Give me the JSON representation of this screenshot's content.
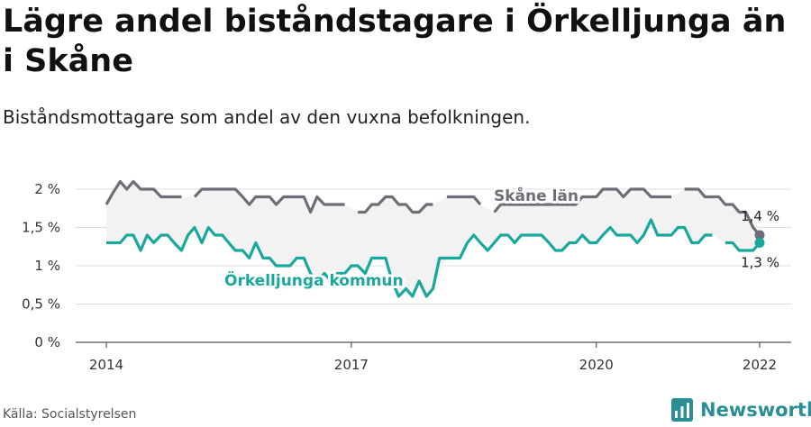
{
  "title": "Lägre andel biståndstagare i Örkelljunga än i Skåne",
  "subtitle": "Biståndsmottagare som andel av den vuxna befolkningen.",
  "source": "Källa: Socialstyrelsen",
  "brand": {
    "name": "Newsworthy",
    "icon": "bar-chart-logo-icon"
  },
  "colors": {
    "lan": "#6e6e78",
    "kommun": "#1aa89c",
    "band": "#f2f2f2",
    "grid": "#dddddd"
  },
  "chart_data": {
    "type": "line",
    "xlim": [
      2014,
      2022.25
    ],
    "ylim": [
      0,
      2.2
    ],
    "y_ticks": [
      {
        "value": 0,
        "label": "0 %"
      },
      {
        "value": 0.5,
        "label": "0,5 %"
      },
      {
        "value": 1,
        "label": "1 %"
      },
      {
        "value": 1.5,
        "label": "1,5 %"
      },
      {
        "value": 2,
        "label": "2 %"
      }
    ],
    "x_ticks": [
      {
        "value": 2014,
        "label": "2014"
      },
      {
        "value": 2017,
        "label": "2017"
      },
      {
        "value": 2020,
        "label": "2020"
      },
      {
        "value": 2022,
        "label": "2022"
      }
    ],
    "grid": true,
    "series": [
      {
        "name": "Skåne län",
        "color": "#6e6e78",
        "end_label": "1,4 %",
        "points": [
          [
            2014.0,
            1.8
          ],
          [
            2014.08,
            1.95
          ],
          [
            2014.17,
            2.1
          ],
          [
            2014.25,
            2.0
          ],
          [
            2014.33,
            2.1
          ],
          [
            2014.42,
            2.0
          ],
          [
            2014.5,
            2.0
          ],
          [
            2014.58,
            2.0
          ],
          [
            2014.67,
            1.9
          ],
          [
            2014.75,
            1.9
          ],
          [
            2014.83,
            1.9
          ],
          [
            2014.92,
            1.9
          ],
          [
            2015.0,
            null
          ],
          [
            2015.08,
            1.9
          ],
          [
            2015.17,
            2.0
          ],
          [
            2015.25,
            2.0
          ],
          [
            2015.33,
            2.0
          ],
          [
            2015.42,
            2.0
          ],
          [
            2015.5,
            2.0
          ],
          [
            2015.58,
            2.0
          ],
          [
            2015.67,
            1.9
          ],
          [
            2015.75,
            1.8
          ],
          [
            2015.83,
            1.9
          ],
          [
            2015.92,
            1.9
          ],
          [
            2016.0,
            1.9
          ],
          [
            2016.08,
            1.8
          ],
          [
            2016.17,
            1.9
          ],
          [
            2016.25,
            1.9
          ],
          [
            2016.33,
            1.9
          ],
          [
            2016.42,
            1.9
          ],
          [
            2016.5,
            1.7
          ],
          [
            2016.58,
            1.9
          ],
          [
            2016.67,
            1.8
          ],
          [
            2016.75,
            1.8
          ],
          [
            2016.83,
            1.8
          ],
          [
            2016.92,
            1.8
          ],
          [
            2017.0,
            null
          ],
          [
            2017.08,
            1.7
          ],
          [
            2017.17,
            1.7
          ],
          [
            2017.25,
            1.8
          ],
          [
            2017.33,
            1.8
          ],
          [
            2017.42,
            1.9
          ],
          [
            2017.5,
            1.9
          ],
          [
            2017.58,
            1.8
          ],
          [
            2017.67,
            1.8
          ],
          [
            2017.75,
            1.7
          ],
          [
            2017.83,
            1.7
          ],
          [
            2017.92,
            1.8
          ],
          [
            2018.0,
            1.8
          ],
          [
            2018.08,
            null
          ],
          [
            2018.17,
            1.9
          ],
          [
            2018.25,
            1.9
          ],
          [
            2018.33,
            1.9
          ],
          [
            2018.42,
            1.9
          ],
          [
            2018.5,
            1.9
          ],
          [
            2018.58,
            1.8
          ],
          [
            2018.67,
            null
          ],
          [
            2018.75,
            1.7
          ],
          [
            2018.83,
            1.8
          ],
          [
            2018.92,
            1.8
          ],
          [
            2019.0,
            1.8
          ],
          [
            2019.08,
            1.8
          ],
          [
            2019.17,
            1.8
          ],
          [
            2019.25,
            1.8
          ],
          [
            2019.33,
            1.8
          ],
          [
            2019.42,
            1.8
          ],
          [
            2019.5,
            1.8
          ],
          [
            2019.58,
            1.8
          ],
          [
            2019.67,
            1.8
          ],
          [
            2019.75,
            1.8
          ],
          [
            2019.83,
            1.9
          ],
          [
            2019.92,
            1.9
          ],
          [
            2020.0,
            1.9
          ],
          [
            2020.08,
            2.0
          ],
          [
            2020.17,
            2.0
          ],
          [
            2020.25,
            2.0
          ],
          [
            2020.33,
            1.9
          ],
          [
            2020.42,
            2.0
          ],
          [
            2020.5,
            2.0
          ],
          [
            2020.58,
            2.0
          ],
          [
            2020.67,
            1.9
          ],
          [
            2020.75,
            1.9
          ],
          [
            2020.83,
            1.9
          ],
          [
            2020.92,
            1.9
          ],
          [
            2021.0,
            null
          ],
          [
            2021.08,
            2.0
          ],
          [
            2021.17,
            2.0
          ],
          [
            2021.25,
            2.0
          ],
          [
            2021.33,
            1.9
          ],
          [
            2021.42,
            1.9
          ],
          [
            2021.5,
            1.9
          ],
          [
            2021.58,
            1.8
          ],
          [
            2021.67,
            1.8
          ],
          [
            2021.75,
            1.7
          ],
          [
            2021.83,
            1.7
          ],
          [
            2021.92,
            1.5
          ],
          [
            2022.0,
            1.4
          ]
        ]
      },
      {
        "name": "Örkelljunga kommun",
        "color": "#1aa89c",
        "end_label": "1,3 %",
        "points": [
          [
            2014.0,
            1.3
          ],
          [
            2014.08,
            1.3
          ],
          [
            2014.17,
            1.3
          ],
          [
            2014.25,
            1.4
          ],
          [
            2014.33,
            1.4
          ],
          [
            2014.42,
            1.2
          ],
          [
            2014.5,
            1.4
          ],
          [
            2014.58,
            1.3
          ],
          [
            2014.67,
            1.4
          ],
          [
            2014.75,
            1.4
          ],
          [
            2014.83,
            1.3
          ],
          [
            2014.92,
            1.2
          ],
          [
            2015.0,
            1.4
          ],
          [
            2015.08,
            1.5
          ],
          [
            2015.17,
            1.3
          ],
          [
            2015.25,
            1.5
          ],
          [
            2015.33,
            1.4
          ],
          [
            2015.42,
            1.4
          ],
          [
            2015.5,
            1.3
          ],
          [
            2015.58,
            1.2
          ],
          [
            2015.67,
            1.2
          ],
          [
            2015.75,
            1.1
          ],
          [
            2015.83,
            1.3
          ],
          [
            2015.92,
            1.1
          ],
          [
            2016.0,
            1.1
          ],
          [
            2016.08,
            1.0
          ],
          [
            2016.17,
            1.0
          ],
          [
            2016.25,
            1.0
          ],
          [
            2016.33,
            1.1
          ],
          [
            2016.42,
            1.1
          ],
          [
            2016.5,
            0.9
          ],
          [
            2016.58,
            0.8
          ],
          [
            2016.67,
            0.9
          ],
          [
            2016.75,
            0.8
          ],
          [
            2016.83,
            0.9
          ],
          [
            2016.92,
            0.9
          ],
          [
            2017.0,
            1.0
          ],
          [
            2017.08,
            1.0
          ],
          [
            2017.17,
            0.9
          ],
          [
            2017.25,
            1.1
          ],
          [
            2017.33,
            1.1
          ],
          [
            2017.42,
            1.1
          ],
          [
            2017.5,
            0.8
          ],
          [
            2017.58,
            0.6
          ],
          [
            2017.67,
            0.7
          ],
          [
            2017.75,
            0.6
          ],
          [
            2017.83,
            0.8
          ],
          [
            2017.92,
            0.6
          ],
          [
            2018.0,
            0.7
          ],
          [
            2018.08,
            1.1
          ],
          [
            2018.17,
            1.1
          ],
          [
            2018.25,
            1.1
          ],
          [
            2018.33,
            1.1
          ],
          [
            2018.42,
            1.3
          ],
          [
            2018.5,
            1.4
          ],
          [
            2018.58,
            1.3
          ],
          [
            2018.67,
            1.2
          ],
          [
            2018.75,
            1.3
          ],
          [
            2018.83,
            1.4
          ],
          [
            2018.92,
            1.4
          ],
          [
            2019.0,
            1.3
          ],
          [
            2019.08,
            1.4
          ],
          [
            2019.17,
            1.4
          ],
          [
            2019.25,
            1.4
          ],
          [
            2019.33,
            1.4
          ],
          [
            2019.42,
            1.3
          ],
          [
            2019.5,
            1.2
          ],
          [
            2019.58,
            1.2
          ],
          [
            2019.67,
            1.3
          ],
          [
            2019.75,
            1.3
          ],
          [
            2019.83,
            1.4
          ],
          [
            2019.92,
            1.3
          ],
          [
            2020.0,
            1.3
          ],
          [
            2020.08,
            1.4
          ],
          [
            2020.17,
            1.5
          ],
          [
            2020.25,
            1.4
          ],
          [
            2020.33,
            1.4
          ],
          [
            2020.42,
            1.4
          ],
          [
            2020.5,
            1.3
          ],
          [
            2020.58,
            1.4
          ],
          [
            2020.67,
            1.6
          ],
          [
            2020.75,
            1.4
          ],
          [
            2020.83,
            1.4
          ],
          [
            2020.92,
            1.4
          ],
          [
            2021.0,
            1.5
          ],
          [
            2021.08,
            1.5
          ],
          [
            2021.17,
            1.3
          ],
          [
            2021.25,
            1.3
          ],
          [
            2021.33,
            1.4
          ],
          [
            2021.42,
            1.4
          ],
          [
            2021.5,
            null
          ],
          [
            2021.58,
            1.3
          ],
          [
            2021.67,
            1.3
          ],
          [
            2021.75,
            1.2
          ],
          [
            2021.83,
            1.2
          ],
          [
            2021.92,
            1.2
          ],
          [
            2022.0,
            1.3
          ]
        ]
      }
    ]
  }
}
